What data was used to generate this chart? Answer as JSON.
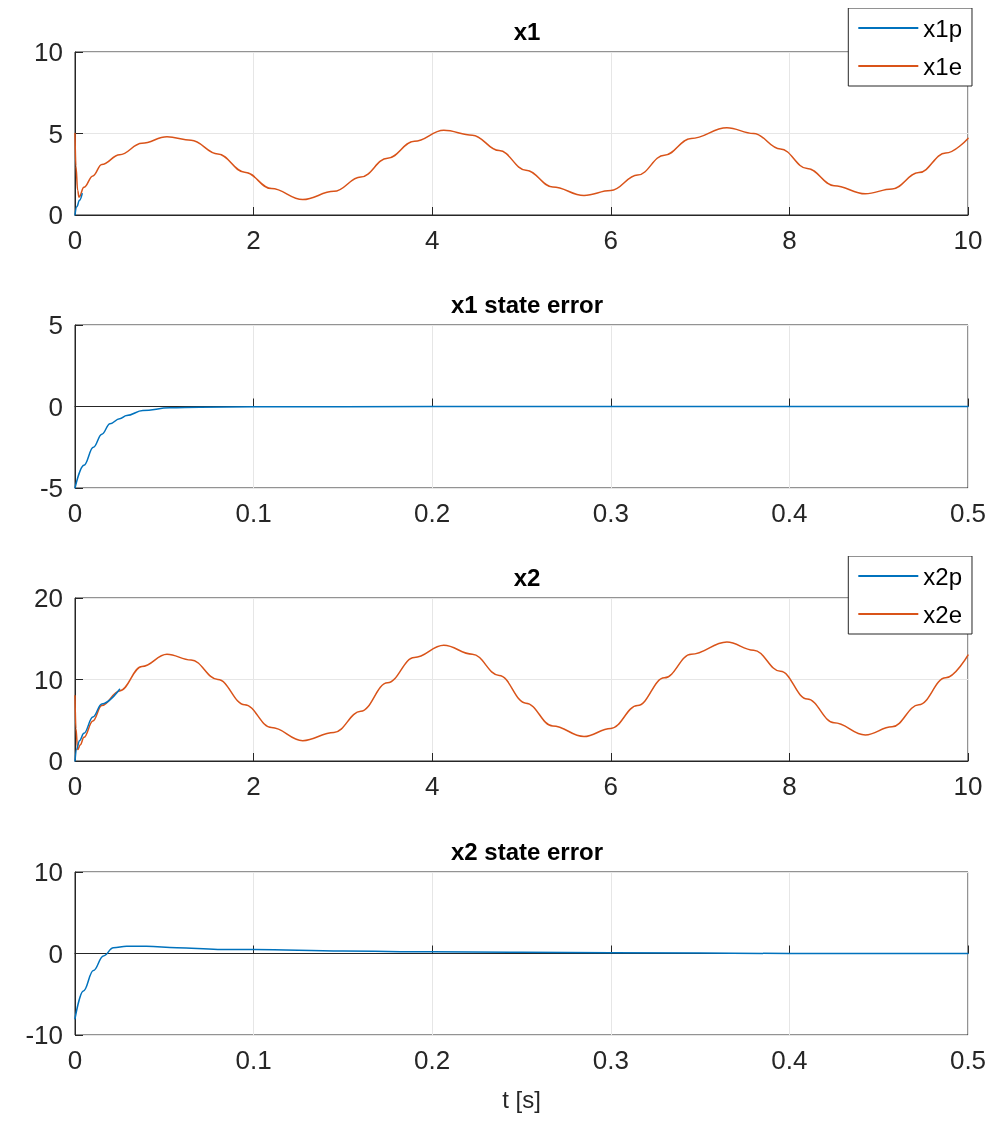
{
  "chart_data": [
    {
      "type": "line",
      "title": "x1",
      "xlim": [
        0,
        10
      ],
      "ylim": [
        0,
        10
      ],
      "xticks": [
        0,
        2,
        4,
        6,
        8,
        10
      ],
      "yticks": [
        0,
        5,
        10
      ],
      "grid": true,
      "legend": "top right",
      "series": [
        {
          "name": "x1p",
          "color": "#0072bd",
          "x": [
            0,
            0.02,
            0.05,
            0.08
          ],
          "values": [
            0,
            0.5,
            0.9,
            1.3
          ]
        },
        {
          "name": "x1e",
          "color": "#d95319",
          "x": [
            0,
            0.01,
            0.03,
            0.045,
            0.1,
            0.2,
            0.3,
            0.5,
            0.75,
            1.03,
            1.3,
            1.6,
            1.9,
            2.2,
            2.55,
            2.9,
            3.2,
            3.5,
            3.8,
            4.13,
            4.45,
            4.75,
            5.05,
            5.35,
            5.7,
            6.0,
            6.3,
            6.6,
            6.9,
            7.3,
            7.6,
            7.9,
            8.2,
            8.5,
            8.85,
            9.15,
            9.45,
            9.75,
            10
          ],
          "values": [
            5,
            3,
            1.5,
            1.1,
            1.7,
            2.4,
            3.1,
            3.7,
            4.4,
            4.8,
            4.58,
            3.74,
            2.63,
            1.62,
            0.95,
            1.45,
            2.33,
            3.48,
            4.52,
            5.2,
            4.9,
            3.95,
            2.75,
            1.72,
            1.2,
            1.5,
            2.45,
            3.67,
            4.7,
            5.35,
            5.0,
            4.05,
            2.85,
            1.8,
            1.3,
            1.6,
            2.6,
            3.8,
            4.7
          ]
        }
      ]
    },
    {
      "type": "line",
      "title": "x1 state error",
      "xlim": [
        0,
        0.5
      ],
      "ylim": [
        -5,
        5
      ],
      "xticks": [
        0,
        0.1,
        0.2,
        0.3,
        0.4,
        0.5
      ],
      "yticks": [
        -5,
        0,
        5
      ],
      "grid": true,
      "series": [
        {
          "color": "#0072bd",
          "x": [
            0,
            0.005,
            0.0103,
            0.015,
            0.0196,
            0.025,
            0.029,
            0.038,
            0.053,
            0.07,
            0.1,
            0.2,
            0.3,
            0.4,
            0.5
          ],
          "values": [
            -5,
            -3.6,
            -2.5,
            -1.7,
            -1.06,
            -0.75,
            -0.55,
            -0.25,
            -0.08,
            -0.04,
            -0.02,
            0,
            0,
            0,
            0
          ]
        }
      ]
    },
    {
      "type": "line",
      "title": "x2",
      "xlim": [
        0,
        10
      ],
      "ylim": [
        0,
        20
      ],
      "xticks": [
        0,
        2,
        4,
        6,
        8,
        10
      ],
      "yticks": [
        0,
        10,
        20
      ],
      "grid": true,
      "legend": "top right",
      "series": [
        {
          "name": "x2p",
          "color": "#0072bd",
          "x": [
            0,
            0.02,
            0.05,
            0.1,
            0.2,
            0.3,
            0.5
          ],
          "values": [
            0,
            1.5,
            2.5,
            3.4,
            5.4,
            7.0,
            8.8
          ]
        },
        {
          "name": "x2e",
          "color": "#d95319",
          "x": [
            0,
            0.01,
            0.03,
            0.06,
            0.1,
            0.2,
            0.3,
            0.5,
            0.75,
            1.03,
            1.3,
            1.6,
            1.9,
            2.2,
            2.55,
            2.9,
            3.2,
            3.5,
            3.8,
            4.13,
            4.45,
            4.75,
            5.05,
            5.35,
            5.7,
            6.0,
            6.3,
            6.6,
            6.9,
            7.3,
            7.6,
            7.9,
            8.2,
            8.5,
            8.85,
            9.15,
            9.45,
            9.75,
            10
          ],
          "values": [
            8,
            4,
            1.4,
            2.0,
            2.9,
            4.9,
            6.8,
            8.6,
            11.6,
            13.1,
            12.4,
            10.0,
            6.9,
            4.1,
            2.5,
            3.5,
            6.1,
            9.6,
            12.7,
            14.2,
            13.1,
            10.5,
            7.1,
            4.3,
            3.0,
            4.0,
            6.8,
            10.2,
            13.1,
            14.6,
            13.6,
            11.0,
            7.6,
            4.7,
            3.2,
            4.2,
            6.9,
            10.2,
            13.0
          ]
        }
      ]
    },
    {
      "type": "line",
      "title": "x2 state error",
      "xlabel": "t [s]",
      "xlim": [
        0,
        0.5
      ],
      "ylim": [
        -10,
        10
      ],
      "xticks": [
        0,
        0.1,
        0.2,
        0.3,
        0.4,
        0.5
      ],
      "yticks": [
        -10,
        0,
        10
      ],
      "grid": true,
      "series": [
        {
          "color": "#0072bd",
          "x": [
            0,
            0.0047,
            0.0103,
            0.0159,
            0.0215,
            0.0289,
            0.04,
            0.057,
            0.08,
            0.1,
            0.15,
            0.2,
            0.3,
            0.4,
            0.5
          ],
          "values": [
            -8,
            -4.6,
            -2.1,
            -0.3,
            0.7,
            0.9,
            0.9,
            0.7,
            0.5,
            0.5,
            0.3,
            0.2,
            0.1,
            0,
            0
          ]
        }
      ]
    }
  ]
}
